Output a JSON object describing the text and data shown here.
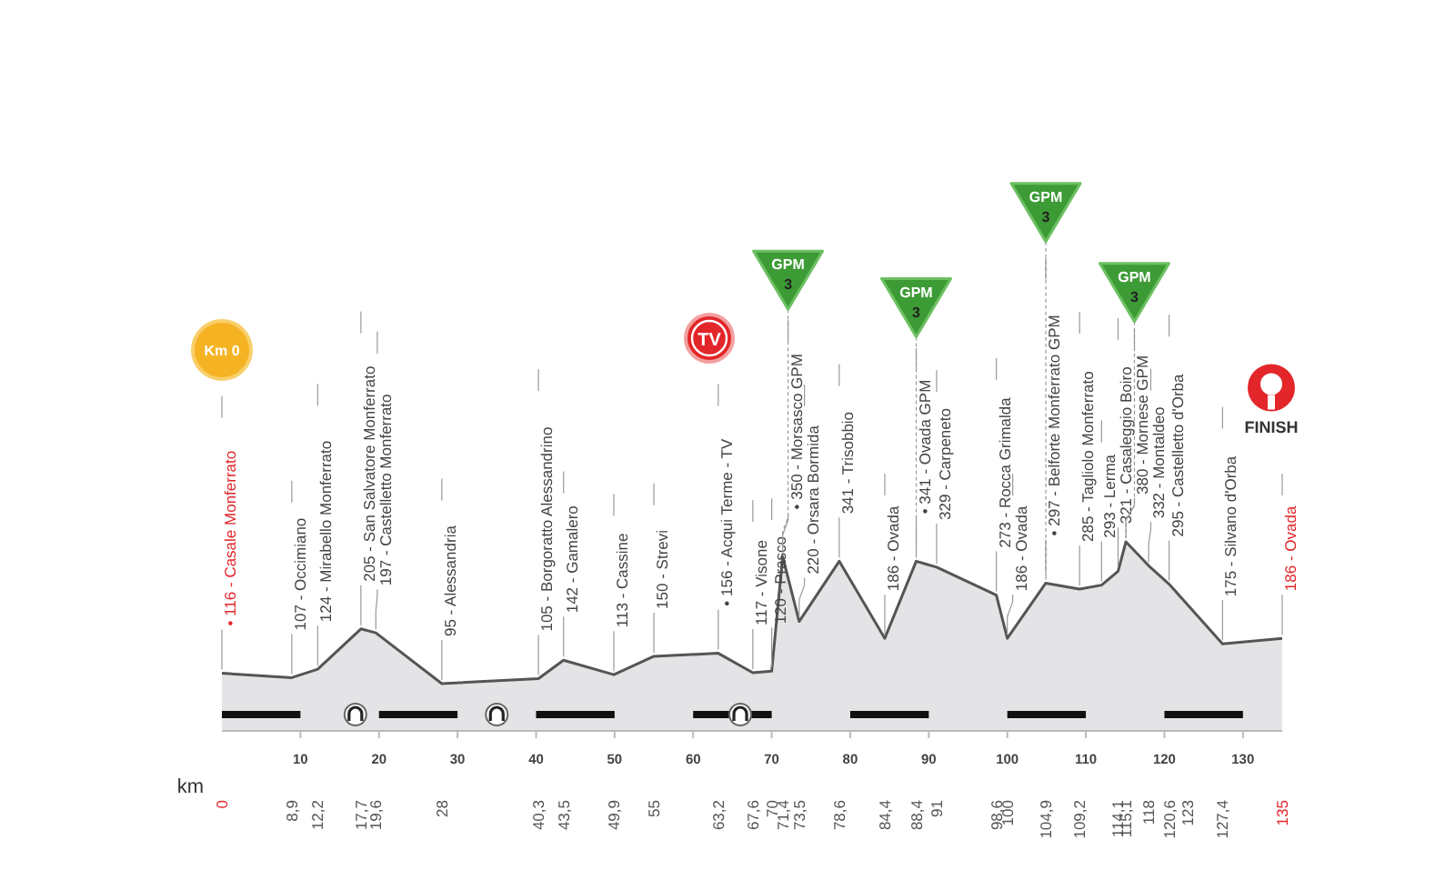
{
  "chart_data": {
    "type": "area",
    "xlabel": "km",
    "tick_labels": "x",
    "grid": false,
    "x": [
      0,
      8.9,
      12.2,
      17.7,
      19.6,
      28,
      40.3,
      43.5,
      49.9,
      55,
      63.2,
      67.6,
      70,
      71.4,
      73.5,
      78.6,
      84.4,
      88.4,
      91,
      98.6,
      100,
      104.9,
      109.2,
      112,
      114.1,
      115.1,
      118,
      120.6,
      127.4,
      135
    ],
    "series": [
      {
        "color": "#555555",
        "values": [
          116,
          107,
          124,
          205,
          197,
          95,
          105,
          142,
          113,
          150,
          156,
          117,
          120,
          350,
          220,
          341,
          186,
          341,
          329,
          273,
          186,
          297,
          285,
          293,
          321,
          380,
          332,
          295,
          175,
          186
        ],
        "value_labels": [
          "• 116 - Casale Monferrato",
          "107 - Occimiano",
          "124 - Mirabello Monferrato",
          "205 - San Salvatore Monferrato",
          "197 - Castelletto Monferrato",
          "95 - Alessandria",
          "105 - Borgoratto Alessandrino",
          "142 - Gamalero",
          "113 - Cassine",
          "150 - Strevi",
          "• 156 - Acqui Terme - TV",
          "117 - Visone",
          "120 - Prasco",
          "• 350 - Morsasco GPM",
          "220 - Orsara Bormida",
          "341 - Trisobbio",
          "186 - Ovada",
          "• 341 - Ovada GPM",
          "329 - Carpeneto",
          "273 - Rocca Grimalda",
          "186 - Ovada",
          "• 297 - Belforte Monferrato GPM",
          "285 - Tagliolo Monferrato",
          "293 - Lerma",
          "321 - Casaleggio Boiro",
          "380 - Mornese GPM",
          "332 - Montaldeo",
          "295 - Castelletto d'Orba",
          "175 - Silvano d'Orba",
          "186 - Ovada"
        ]
      }
    ],
    "xlim": [
      0,
      135
    ],
    "xticks": [
      0,
      {
        "value": 8.9,
        "label": "8,9"
      },
      {
        "value": 12.2,
        "label": "12,2"
      },
      {
        "value": 17.7,
        "label": "17,7"
      },
      {
        "value": 19.6,
        "label": "19,6"
      },
      28,
      {
        "value": 40.3,
        "label": "40,3"
      },
      {
        "value": 43.5,
        "label": "43,5"
      },
      {
        "value": 49.9,
        "label": "49,9"
      },
      55,
      {
        "value": 63.2,
        "label": "63,2"
      },
      {
        "value": 67.6,
        "label": "67,6"
      },
      70,
      {
        "value": 71.4,
        "label": "71,4"
      },
      {
        "value": 73.5,
        "label": "73,5"
      },
      {
        "value": 78.6,
        "label": "78,6"
      },
      {
        "value": 84.4,
        "label": "84,4"
      },
      {
        "value": 88.4,
        "label": "88,4"
      },
      91,
      {
        "value": 98.6,
        "label": "98,6"
      },
      100,
      {
        "value": 104.9,
        "label": "104,9"
      },
      {
        "value": 109.2,
        "label": "109,2"
      },
      {
        "value": 114.1,
        "label": "114,1"
      },
      {
        "value": 115.1,
        "label": "115,1"
      },
      118,
      {
        "value": 120.6,
        "label": "120,6"
      },
      123,
      {
        "value": 127.4,
        "label": "127,4"
      },
      135
    ],
    "x2lim": [
      0,
      135
    ],
    "x2ticks": [
      10,
      20,
      30,
      40,
      50,
      60,
      70,
      80,
      90,
      100,
      110,
      120,
      130
    ],
    "annotations": [
      "Km 0",
      "TV",
      {
        "text": "GPM\n3",
        "x": 71.4,
        "y": 350
      },
      {
        "text": "GPM\n3",
        "x": 88.4,
        "y": 341
      },
      {
        "text": "GPM\n3",
        "x": 104.9,
        "y": 297
      },
      {
        "text": "GPM\n3",
        "x": 115.1,
        "y": 380
      },
      "FINISH"
    ]
  }
}
